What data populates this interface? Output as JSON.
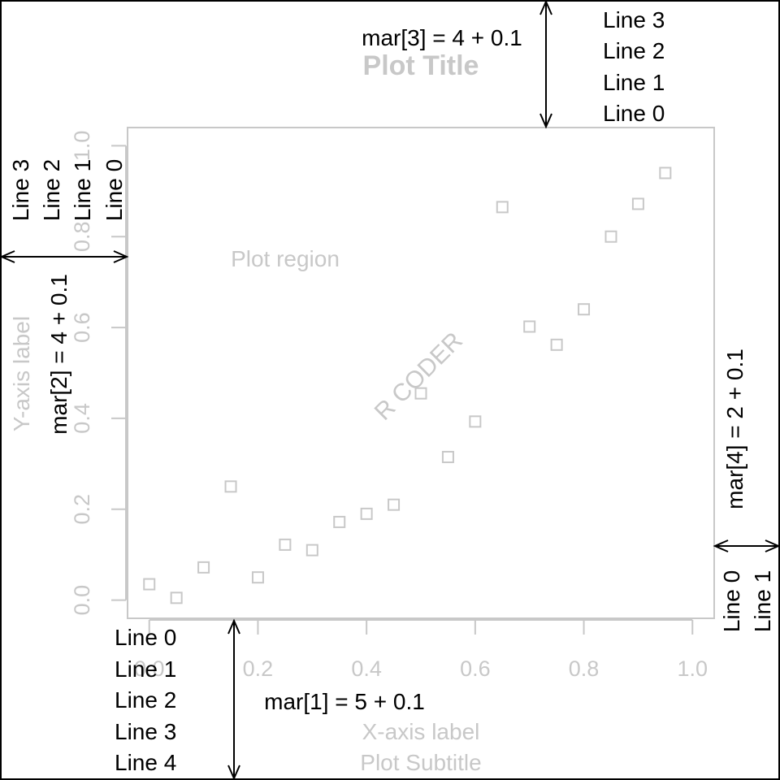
{
  "chart_data": {
    "type": "scatter",
    "title": "Plot Title",
    "subtitle": "Plot Subtitle",
    "xlabel": "X-axis label",
    "ylabel": "Y-axis label",
    "xlim": [
      -0.04,
      1.04
    ],
    "ylim": [
      -0.04,
      1.04
    ],
    "x_ticks": [
      0.0,
      0.2,
      0.4,
      0.6,
      0.8,
      1.0
    ],
    "y_ticks": [
      0.0,
      0.2,
      0.4,
      0.6,
      0.8,
      1.0
    ],
    "x_tick_labels": [
      "0.0",
      "0.2",
      "0.4",
      "0.6",
      "0.8",
      "1.0"
    ],
    "y_tick_labels": [
      "0.0",
      "0.2",
      "0.4",
      "0.6",
      "0.8",
      "1.0"
    ],
    "grid": false,
    "marker": "open-square",
    "color": "#c8c8c8",
    "series": [
      {
        "x": [
          0.0,
          0.05,
          0.1,
          0.15,
          0.2,
          0.25,
          0.3,
          0.35,
          0.4,
          0.45,
          0.5,
          0.55,
          0.6,
          0.65,
          0.7,
          0.75,
          0.8,
          0.85,
          0.9,
          0.95
        ],
        "y": [
          0.035,
          0.005,
          0.072,
          0.25,
          0.05,
          0.122,
          0.11,
          0.172,
          0.19,
          0.21,
          0.455,
          0.315,
          0.393,
          0.865,
          0.602,
          0.562,
          0.64,
          0.8,
          0.872,
          0.94
        ]
      }
    ]
  },
  "annotations": {
    "plot_region": "Plot region",
    "watermark": "R CODER",
    "mar1": "mar[1] = 5 + 0.1",
    "mar2": "mar[2] = 4 + 0.1",
    "mar3": "mar[3] = 4 + 0.1",
    "mar4": "mar[4] = 2 + 0.1",
    "bottom_lines": [
      "Line 0",
      "Line 1",
      "Line 2",
      "Line 3",
      "Line 4"
    ],
    "left_lines": [
      "Line 0",
      "Line 1",
      "Line 2",
      "Line 3"
    ],
    "top_lines": [
      "Line 0",
      "Line 1",
      "Line 2",
      "Line 3"
    ],
    "right_lines": [
      "Line 0",
      "Line 1"
    ]
  }
}
